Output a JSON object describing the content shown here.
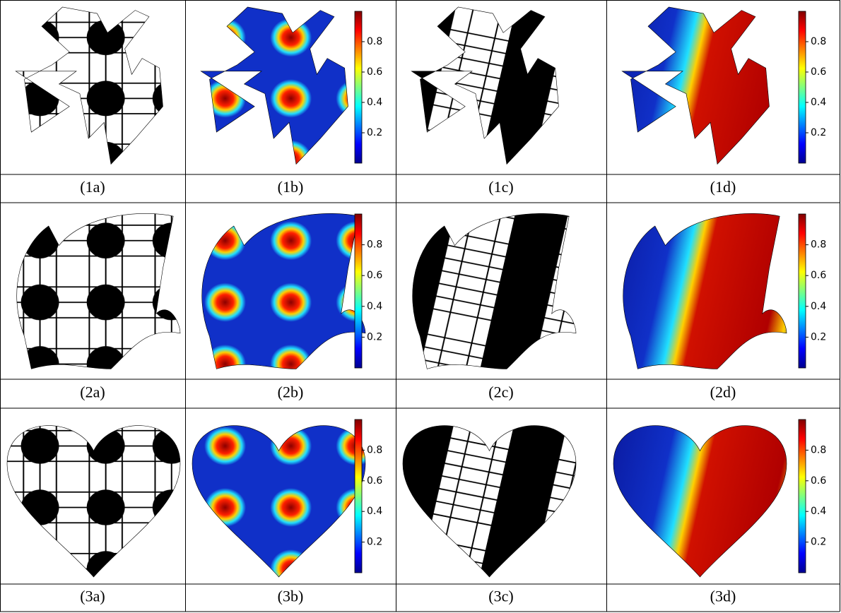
{
  "figure": {
    "rows": [
      [
        "(1a)",
        "(1b)",
        "(1c)",
        "(1d)"
      ],
      [
        "(2a)",
        "(2b)",
        "(2c)",
        "(2d)"
      ],
      [
        "(3a)",
        "(3b)",
        "(3c)",
        "(3d)"
      ]
    ],
    "colorbar": {
      "lim": [
        0,
        1
      ],
      "ticks": [
        0.2,
        0.4,
        0.6,
        0.8
      ]
    }
  }
}
